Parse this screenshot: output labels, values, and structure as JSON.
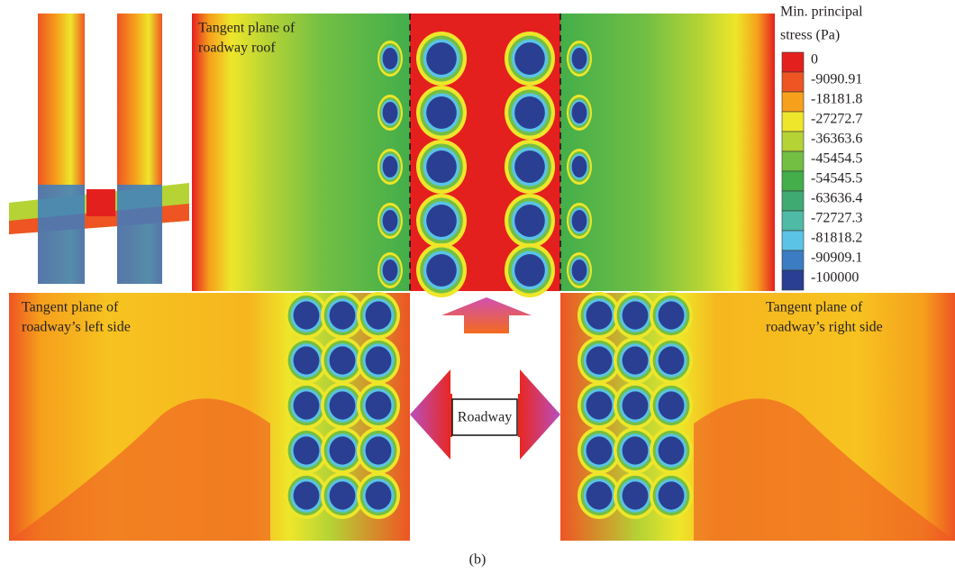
{
  "panels": {
    "roof": {
      "label_lines": [
        "Tangent plane of",
        "roadway roof"
      ]
    },
    "left": {
      "label_lines": [
        "Tangent plane of",
        "roadway’s left side"
      ]
    },
    "right": {
      "label_lines": [
        "Tangent plane of",
        "roadway’s right side"
      ]
    }
  },
  "center_label": "Roadway",
  "legend": {
    "title_lines": [
      "Min. principal",
      "stress (Pa)"
    ],
    "entries": [
      {
        "label": "0",
        "color": "#e4201f"
      },
      {
        "label": "-9090.91",
        "color": "#ee5523"
      },
      {
        "label": "-18181.8",
        "color": "#f6a01c"
      },
      {
        "label": "-27272.7",
        "color": "#eee62a"
      },
      {
        "label": "-36363.6",
        "color": "#b5d335"
      },
      {
        "label": "-45454.5",
        "color": "#72bf44"
      },
      {
        "label": "-54545.5",
        "color": "#43ae4a"
      },
      {
        "label": "-63636.4",
        "color": "#3fab73"
      },
      {
        "label": "-72727.3",
        "color": "#4fbaa5"
      },
      {
        "label": "-81818.2",
        "color": "#5ac3e6"
      },
      {
        "label": "-90909.1",
        "color": "#3b7cc2"
      },
      {
        "label": "-100000",
        "color": "#2a3f92"
      }
    ]
  },
  "caption": "(b)"
}
